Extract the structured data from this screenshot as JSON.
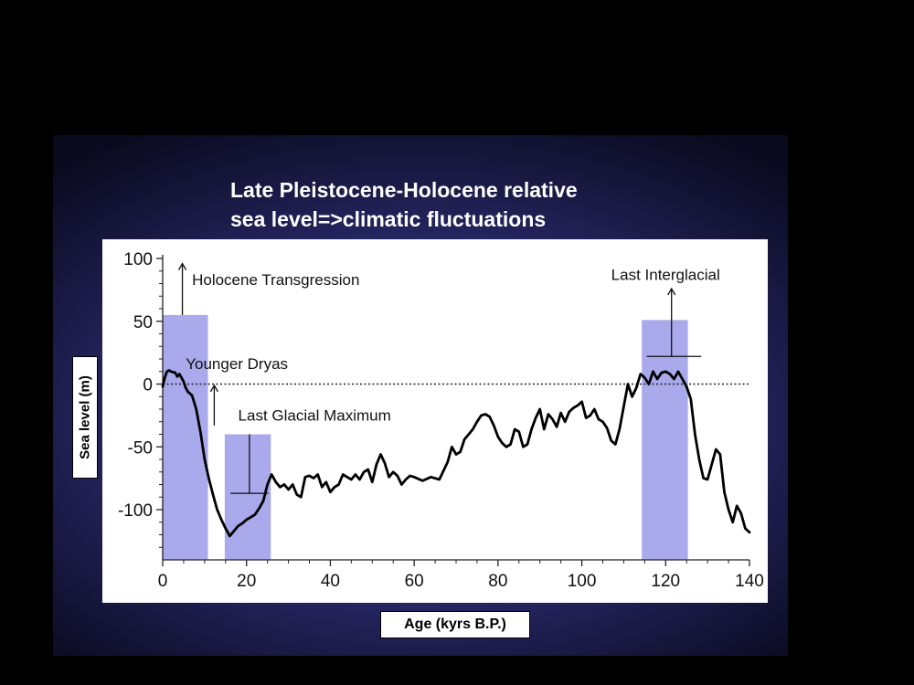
{
  "slide": {
    "title_lines": [
      "Late Pleistocene-Holocene relative",
      "sea level=>climatic fluctuations"
    ]
  },
  "chart_data": {
    "type": "line",
    "xlabel": "Age (kyrs B.P.)",
    "ylabel": "Sea level (m)",
    "xlim": [
      0,
      140
    ],
    "ylim": [
      -140,
      100
    ],
    "x_ticks": [
      0,
      20,
      40,
      60,
      80,
      100,
      120,
      140
    ],
    "y_ticks": [
      100,
      50,
      0,
      -50,
      -100
    ],
    "zero_reference": "dotted",
    "grid": false,
    "line_color": "#000000",
    "band_color": "#9a9ae8",
    "series": [
      {
        "x": [
          0,
          0.5,
          1,
          1.5,
          2,
          3,
          3.5,
          4,
          4.5,
          5,
          5.5,
          6,
          7,
          8,
          9,
          10,
          11,
          12,
          13,
          14,
          15,
          16,
          17,
          18,
          19,
          20,
          21,
          22,
          23,
          24,
          25,
          26,
          27,
          28,
          29,
          30,
          31,
          32,
          33,
          34,
          35,
          36,
          37,
          38,
          39,
          40,
          41,
          42,
          43,
          44,
          45,
          46,
          47,
          48,
          49,
          50,
          51,
          52,
          53,
          54,
          55,
          56,
          57,
          58,
          59,
          60,
          62,
          64,
          66,
          68,
          69,
          70,
          71,
          72,
          73,
          74,
          75,
          76,
          77,
          78,
          79,
          80,
          81,
          82,
          83,
          84,
          85,
          86,
          87,
          88,
          89,
          90,
          91,
          92,
          93,
          94,
          95,
          96,
          97,
          98,
          99,
          100,
          101,
          102,
          103,
          104,
          105,
          106,
          107,
          108,
          109,
          110,
          111,
          112,
          113,
          114,
          115,
          116,
          117,
          118,
          119,
          120,
          121,
          122,
          123,
          124,
          125,
          126,
          127,
          128,
          129,
          130,
          131,
          132,
          133,
          134,
          135,
          136,
          137,
          138,
          139,
          140
        ],
        "y": [
          -2,
          5,
          10,
          11,
          10,
          9,
          6,
          8,
          5,
          2,
          -3,
          -6,
          -9,
          -20,
          -38,
          -60,
          -75,
          -88,
          -100,
          -108,
          -115,
          -121,
          -117,
          -113,
          -111,
          -108,
          -106,
          -104,
          -99,
          -93,
          -80,
          -72,
          -78,
          -82,
          -80,
          -84,
          -80,
          -88,
          -90,
          -74,
          -73,
          -75,
          -72,
          -82,
          -78,
          -86,
          -82,
          -80,
          -72,
          -74,
          -76,
          -72,
          -76,
          -70,
          -68,
          -78,
          -64,
          -56,
          -63,
          -74,
          -70,
          -73,
          -80,
          -76,
          -73,
          -74,
          -77,
          -74,
          -76,
          -62,
          -50,
          -56,
          -54,
          -44,
          -40,
          -36,
          -30,
          -25,
          -24,
          -26,
          -33,
          -42,
          -47,
          -50,
          -48,
          -36,
          -38,
          -50,
          -48,
          -36,
          -27,
          -20,
          -36,
          -24,
          -28,
          -34,
          -23,
          -30,
          -22,
          -19,
          -17,
          -14,
          -27,
          -25,
          -20,
          -28,
          -30,
          -35,
          -45,
          -48,
          -36,
          -18,
          0,
          -10,
          -3,
          8,
          5,
          0,
          10,
          4,
          9,
          10,
          8,
          4,
          10,
          4,
          -2,
          -12,
          -40,
          -60,
          -75,
          -76,
          -64,
          -52,
          -56,
          -86,
          -100,
          -110,
          -97,
          -103,
          -115,
          -118
        ]
      }
    ],
    "bands": [
      {
        "x0": 0,
        "x1": 10.8,
        "top": 55
      },
      {
        "x0": 14.8,
        "x1": 25.8,
        "top": -40
      },
      {
        "x0": 114.3,
        "x1": 125.3,
        "top": 51
      }
    ],
    "annotations": [
      {
        "text": "Holocene Transgression",
        "x": 7,
        "y": 79
      },
      {
        "text": "Younger Dryas",
        "x": 5.5,
        "y": 12
      },
      {
        "text": "Last Glacial Maximum",
        "x": 18,
        "y": -29
      },
      {
        "text": "Last Interglacial",
        "x": 107,
        "y": 83
      }
    ],
    "markers": [
      {
        "type": "arrow",
        "x": 4.7,
        "y0": 55,
        "y1": 96
      },
      {
        "type": "arrow",
        "x": 12.3,
        "y0": -33,
        "y1": -1
      },
      {
        "type": "tbar",
        "x": 20.7,
        "y_top": -40,
        "y_bottom": -87,
        "half_width": 4.5
      },
      {
        "type": "arrow_hline",
        "x": 121.4,
        "y0": 22,
        "y1": 76,
        "x_left": 115.5,
        "x_right": 128.5
      }
    ]
  }
}
